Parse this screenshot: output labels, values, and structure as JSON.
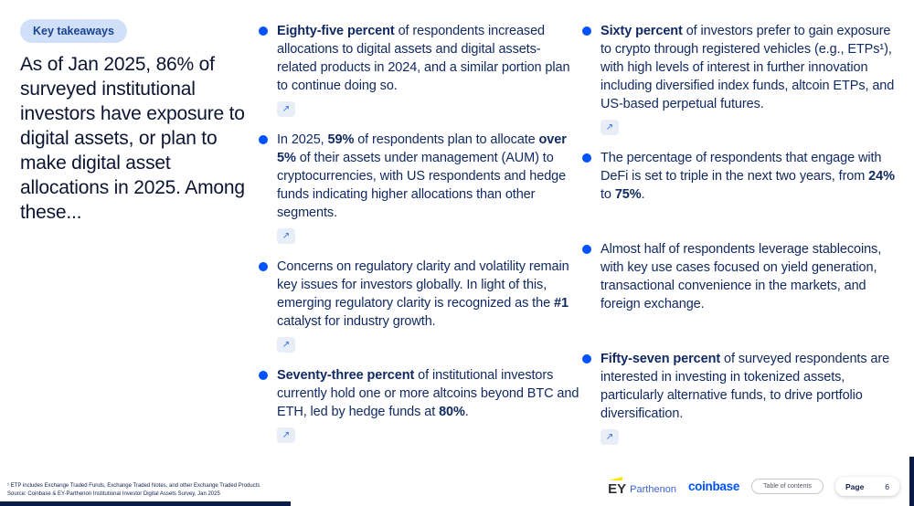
{
  "colors": {
    "accent": "#0052ff",
    "badge_bg": "#cfe0f8",
    "badge_text": "#1b428f",
    "body_text": "#122a63",
    "headline_text": "#0b1430",
    "arrow_chip_bg": "#e8eef8",
    "edge_bar": "#0a1b45",
    "ey_yellow": "#ffe600"
  },
  "badge": {
    "label": "Key takeaways"
  },
  "headline": "As of Jan 2025, 86% of surveyed institutional investors have exposure to digital assets, or plan to make digital asset allocations in 2025. Among these...",
  "external_link_icon": "↗",
  "columns": [
    {
      "items": [
        {
          "link": true,
          "segments": [
            {
              "bold": true,
              "text": "Eighty-five percent"
            },
            {
              "bold": false,
              "text": " of respondents increased allocations to digital assets and digital assets-related products in 2024, and a similar portion plan to continue doing so."
            }
          ]
        },
        {
          "link": true,
          "segments": [
            {
              "bold": false,
              "text": "In 2025, "
            },
            {
              "bold": true,
              "text": "59%"
            },
            {
              "bold": false,
              "text": " of respondents plan to allocate "
            },
            {
              "bold": true,
              "text": "over 5%"
            },
            {
              "bold": false,
              "text": " of their assets under management (AUM) to cryptocurrencies, with US respondents and hedge funds indicating higher allocations than other segments."
            }
          ]
        },
        {
          "link": true,
          "segments": [
            {
              "bold": false,
              "text": "Concerns on regulatory clarity and volatility remain key issues for investors globally. In light of this, emerging regulatory clarity is recognized as the "
            },
            {
              "bold": true,
              "text": "#1"
            },
            {
              "bold": false,
              "text": " catalyst for industry growth."
            }
          ]
        },
        {
          "link": true,
          "segments": [
            {
              "bold": true,
              "text": "Seventy-three percent"
            },
            {
              "bold": false,
              "text": " of institutional investors currently hold one or more altcoins beyond BTC and ETH, led by hedge funds at "
            },
            {
              "bold": true,
              "text": "80%"
            },
            {
              "bold": false,
              "text": "."
            }
          ]
        }
      ]
    },
    {
      "items": [
        {
          "link": true,
          "segments": [
            {
              "bold": true,
              "text": "Sixty percent"
            },
            {
              "bold": false,
              "text": " of investors prefer to gain exposure to crypto through registered vehicles (e.g., ETPs¹), with high levels of interest in further innovation including diversified index funds, altcoin ETPs, and US-based perpetual futures."
            }
          ]
        },
        {
          "link": false,
          "segments": [
            {
              "bold": false,
              "text": "The percentage of respondents that engage with DeFi is set to triple in the next two years, from "
            },
            {
              "bold": true,
              "text": "24%"
            },
            {
              "bold": false,
              "text": " to "
            },
            {
              "bold": true,
              "text": "75%"
            },
            {
              "bold": false,
              "text": "."
            }
          ]
        },
        {
          "link": false,
          "segments": [
            {
              "bold": false,
              "text": "Almost half of respondents leverage stablecoins, with key use cases focused on yield generation, transactional convenience in the markets, and foreign exchange."
            }
          ]
        },
        {
          "link": true,
          "segments": [
            {
              "bold": true,
              "text": "Fifty-seven percent"
            },
            {
              "bold": false,
              "text": " of surveyed respondents are interested in investing in tokenized assets, particularly alternative funds, to drive portfolio diversification."
            }
          ]
        }
      ]
    }
  ],
  "footnotes": [
    "¹ ETP includes Exchange Traded Funds, Exchange Traded Notes, and other Exchange Traded Products",
    "Source: Coinbase & EY-Parthenon Institutional Investor Digital Assets Survey, Jan 2025"
  ],
  "footer": {
    "ey": "EY",
    "parthenon": "Parthenon",
    "coinbase": "coinbase",
    "toc_label": "Table of contents",
    "page_label": "Page",
    "page_number": "6"
  }
}
